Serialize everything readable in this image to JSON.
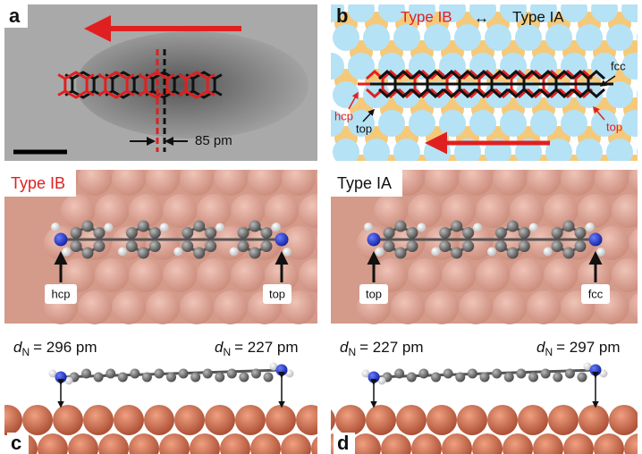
{
  "panels": [
    {
      "label": "a",
      "scale_label": "85 pm"
    },
    {
      "label": "b",
      "title_left": "Type IB",
      "title_arrow": "↔",
      "title_right": "Type IA",
      "sites": [
        "hcp",
        "fcc",
        "top",
        "top"
      ]
    },
    {
      "label": "c",
      "title": "Type IB",
      "sites": [
        "hcp",
        "top"
      ],
      "distances": [
        {
          "symbol": "d",
          "subscript": "N",
          "text": "= 296 pm"
        },
        {
          "symbol": "d",
          "subscript": "N",
          "text": "= 227 pm"
        }
      ]
    },
    {
      "label": "d",
      "title": "Type IA",
      "sites": [
        "top",
        "fcc"
      ],
      "distances": [
        {
          "symbol": "d",
          "subscript": "N",
          "text": "= 227 pm"
        },
        {
          "symbol": "d",
          "subscript": "N",
          "text": "= 297 pm"
        }
      ]
    }
  ]
}
